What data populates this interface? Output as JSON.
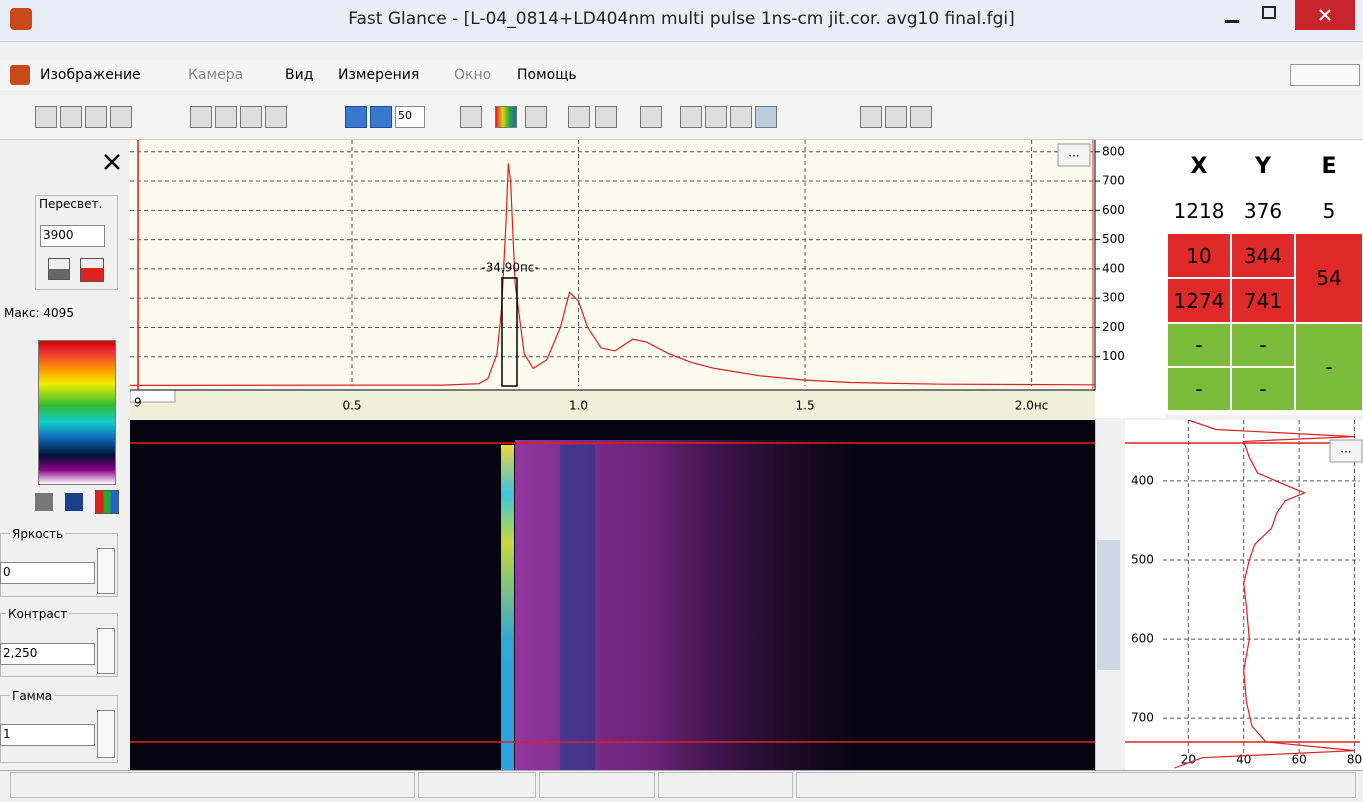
{
  "window": {
    "title": "Fast Glance - [L-04_0814+LD404nm multi pulse 1ns-cm jit.cor. avg10 final.fgi]"
  },
  "menu": [
    "Изображение",
    "Камера",
    "Вид",
    "Измерения",
    "Окно",
    "Помощь"
  ],
  "toolbar": {
    "zoom": "50"
  },
  "left_panel": {
    "overexposure_label": "Пересвет.",
    "overexposure_value": "3900",
    "max_label": "Макс: 4095",
    "brightness_label": "Яркость",
    "brightness_value": "0",
    "contrast_label": "Контраст",
    "contrast_value": "2,250",
    "gamma_label": "Гамма",
    "gamma_value": "1"
  },
  "time_plot": {
    "button": "...",
    "corner_label": "9",
    "pulse_label": "-34,90пс-",
    "xlim": [
      0.01,
      2.14
    ],
    "ylim": [
      0,
      830
    ],
    "xticks": [
      0.5,
      {
        "value": 1,
        "label": "1.0"
      },
      1.5,
      {
        "value": 2,
        "label": "2.0нс"
      }
    ],
    "yticks": [
      100,
      200,
      300,
      400,
      500,
      600,
      700,
      800
    ],
    "time": [
      0.01,
      0.7,
      0.78,
      0.8,
      0.82,
      0.83,
      0.84,
      0.845,
      0.85,
      0.86,
      0.88,
      0.9,
      0.93,
      0.96,
      0.98,
      1.0,
      1.02,
      1.05,
      1.08,
      1.12,
      1.15,
      1.2,
      1.25,
      1.3,
      1.4,
      1.5,
      1.6,
      1.8,
      2.14
    ],
    "counts": [
      2,
      3,
      8,
      25,
      110,
      260,
      560,
      760,
      700,
      350,
      110,
      60,
      90,
      200,
      320,
      290,
      200,
      130,
      120,
      160,
      150,
      110,
      80,
      60,
      35,
      20,
      12,
      6,
      4
    ]
  },
  "measurements": {
    "headers": [
      "X",
      "Y",
      "E"
    ],
    "rows": [
      [
        "1218",
        "376",
        "5"
      ],
      [
        "10",
        "344"
      ],
      [
        "1274",
        "741"
      ],
      [
        "-",
        "-"
      ],
      [
        "-",
        "-"
      ]
    ],
    "e_red": "54",
    "e_green": "-"
  },
  "space_plot": {
    "button": "...",
    "xlim": [
      0,
      82
    ],
    "ylim": [
      323,
      763
    ],
    "xticks": [
      20,
      40,
      60,
      80
    ],
    "yticks": [
      400,
      500,
      600,
      700
    ],
    "row": [
      323,
      335,
      344,
      350,
      370,
      390,
      405,
      415,
      425,
      440,
      460,
      480,
      500,
      530,
      560,
      600,
      640,
      680,
      710,
      730,
      741,
      750,
      763
    ],
    "intensity": [
      20,
      30,
      80,
      40,
      42,
      45,
      55,
      62,
      55,
      52,
      50,
      44,
      42,
      40,
      41,
      42,
      40,
      41,
      43,
      48,
      80,
      25,
      15
    ]
  }
}
